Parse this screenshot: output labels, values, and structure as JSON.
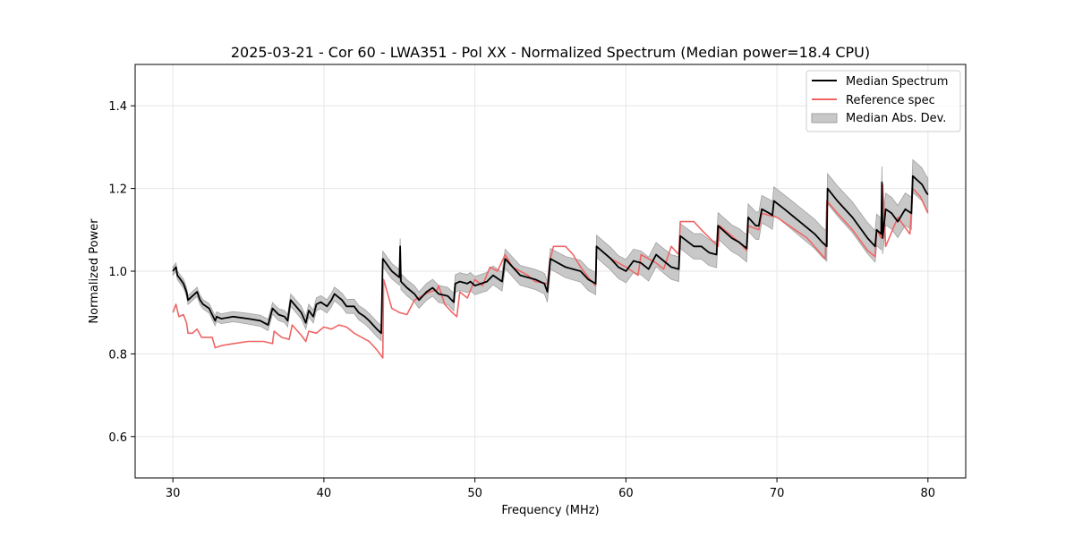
{
  "chart_data": {
    "type": "line",
    "title": "2025-03-21 - Cor 60 - LWA351 - Pol XX - Normalized Spectrum (Median power=18.4 CPU)",
    "xlabel": "Frequency (MHz)",
    "ylabel": "Normalized Power",
    "xlim": [
      27.5,
      82.5
    ],
    "ylim": [
      0.5,
      1.5
    ],
    "xticks": [
      30,
      40,
      50,
      60,
      70,
      80
    ],
    "yticks": [
      0.6,
      0.8,
      1.0,
      1.2,
      1.4
    ],
    "xtick_labels": [
      "30",
      "40",
      "50",
      "60",
      "70",
      "80"
    ],
    "ytick_labels": [
      "0.6",
      "0.8",
      "1.0",
      "1.2",
      "1.4"
    ],
    "grid": true,
    "legend_position": "top-right",
    "legend": [
      "Median Spectrum",
      "Reference spec",
      "Median Abs. Dev."
    ],
    "colors": {
      "median": "#000000",
      "reference": "#ee6666",
      "mad_fill": "#c8c8c8",
      "mad_edge": "#a0a0a0",
      "grid": "#e6e6e6"
    },
    "series": [
      {
        "name": "Median Spectrum",
        "x": [
          30.0,
          30.2,
          30.3,
          30.5,
          30.7,
          30.9,
          31.0,
          31.3,
          31.6,
          31.8,
          32.0,
          32.4,
          32.8,
          32.9,
          33.2,
          34.0,
          35.0,
          35.8,
          36.3,
          36.6,
          37.0,
          37.4,
          37.6,
          37.8,
          38.5,
          38.8,
          39.0,
          39.3,
          39.5,
          39.8,
          40.2,
          40.5,
          40.7,
          41.2,
          41.5,
          42.0,
          42.3,
          42.7,
          43.0,
          43.5,
          43.8,
          43.9,
          44.5,
          45.0,
          45.05,
          45.1,
          45.5,
          46.0,
          46.3,
          46.8,
          47.2,
          47.6,
          48.2,
          48.6,
          48.7,
          49.0,
          49.5,
          49.7,
          50.0,
          50.8,
          51.2,
          51.6,
          51.8,
          52.0,
          52.5,
          53.0,
          54.0,
          54.6,
          54.8,
          55.0,
          55.5,
          56.0,
          56.5,
          57.0,
          57.5,
          58.0,
          58.05,
          59.0,
          59.5,
          60.0,
          60.5,
          61.0,
          61.5,
          62.0,
          62.5,
          63.0,
          63.5,
          63.6,
          64.5,
          65.0,
          65.5,
          66.0,
          66.1,
          67.0,
          67.5,
          68.0,
          68.1,
          68.6,
          68.8,
          69.0,
          69.5,
          69.7,
          69.8,
          70.5,
          71.5,
          72.5,
          73.0,
          73.3,
          73.35,
          74.0,
          75.0,
          76.0,
          76.5,
          76.6,
          76.9,
          76.95,
          77.0,
          77.2,
          77.6,
          78.0,
          78.5,
          78.9,
          79.0,
          79.3,
          79.6,
          79.9,
          80.0
        ],
        "y": [
          1.0,
          1.01,
          0.99,
          0.98,
          0.97,
          0.95,
          0.93,
          0.94,
          0.95,
          0.93,
          0.92,
          0.91,
          0.88,
          0.89,
          0.885,
          0.89,
          0.885,
          0.88,
          0.87,
          0.91,
          0.895,
          0.89,
          0.88,
          0.93,
          0.9,
          0.875,
          0.905,
          0.89,
          0.92,
          0.925,
          0.915,
          0.93,
          0.945,
          0.93,
          0.915,
          0.915,
          0.9,
          0.89,
          0.88,
          0.86,
          0.85,
          1.03,
          1.0,
          0.985,
          1.06,
          0.975,
          0.96,
          0.945,
          0.93,
          0.95,
          0.96,
          0.945,
          0.94,
          0.925,
          0.97,
          0.975,
          0.97,
          0.975,
          0.965,
          0.975,
          0.99,
          0.98,
          0.975,
          1.03,
          1.01,
          0.99,
          0.98,
          0.97,
          0.95,
          1.03,
          1.02,
          1.01,
          1.005,
          1.0,
          0.98,
          0.97,
          1.06,
          1.03,
          1.01,
          1.0,
          1.025,
          1.02,
          1.005,
          1.04,
          1.025,
          1.01,
          1.005,
          1.085,
          1.06,
          1.06,
          1.045,
          1.04,
          1.11,
          1.08,
          1.07,
          1.055,
          1.13,
          1.11,
          1.11,
          1.15,
          1.14,
          1.135,
          1.17,
          1.15,
          1.12,
          1.09,
          1.07,
          1.06,
          1.2,
          1.17,
          1.13,
          1.08,
          1.06,
          1.1,
          1.09,
          1.215,
          1.08,
          1.15,
          1.14,
          1.12,
          1.15,
          1.14,
          1.23,
          1.22,
          1.21,
          1.19,
          1.185
        ]
      },
      {
        "name": "Reference spec",
        "x": [
          30.0,
          30.2,
          30.4,
          30.7,
          30.9,
          31.0,
          31.3,
          31.6,
          31.9,
          32.2,
          32.6,
          32.8,
          33.2,
          34.0,
          35.0,
          36.0,
          36.6,
          36.7,
          37.2,
          37.7,
          37.9,
          38.5,
          38.8,
          39.0,
          39.5,
          40.0,
          40.5,
          41.0,
          41.5,
          42.0,
          42.5,
          43.0,
          43.5,
          43.9,
          43.95,
          44.5,
          45.0,
          45.5,
          46.0,
          46.5,
          47.0,
          47.5,
          47.6,
          48.0,
          48.5,
          48.8,
          49.0,
          49.5,
          50.0,
          50.5,
          51.0,
          51.5,
          52.0,
          52.5,
          53.5,
          54.0,
          54.8,
          55.0,
          55.2,
          55.6,
          56.0,
          56.5,
          57.0,
          57.5,
          58.0,
          58.05,
          59.0,
          60.0,
          60.8,
          61.0,
          62.0,
          62.5,
          63.0,
          63.5,
          63.6,
          64.5,
          65.0,
          66.1,
          66.2,
          67.5,
          68.0,
          68.1,
          68.8,
          69.0,
          70.0,
          72.0,
          73.2,
          73.3,
          74.0,
          75.0,
          76.0,
          76.5,
          76.6,
          76.9,
          77.0,
          77.2,
          78.0,
          78.8,
          79.0,
          79.5,
          80.0
        ],
        "y": [
          0.9,
          0.92,
          0.89,
          0.895,
          0.875,
          0.85,
          0.85,
          0.86,
          0.84,
          0.84,
          0.84,
          0.815,
          0.82,
          0.825,
          0.83,
          0.83,
          0.825,
          0.855,
          0.84,
          0.835,
          0.87,
          0.845,
          0.83,
          0.855,
          0.85,
          0.865,
          0.86,
          0.87,
          0.865,
          0.85,
          0.84,
          0.83,
          0.81,
          0.79,
          0.98,
          0.91,
          0.9,
          0.895,
          0.93,
          0.94,
          0.95,
          0.955,
          0.965,
          0.92,
          0.9,
          0.89,
          0.95,
          0.935,
          0.98,
          0.965,
          1.01,
          1.0,
          1.04,
          1.01,
          0.99,
          0.975,
          0.97,
          1.03,
          1.06,
          1.06,
          1.06,
          1.04,
          1.01,
          0.985,
          0.965,
          1.06,
          1.03,
          1.01,
          0.99,
          1.04,
          1.02,
          1.005,
          1.06,
          1.04,
          1.12,
          1.12,
          1.1,
          1.06,
          1.11,
          1.07,
          1.05,
          1.11,
          1.1,
          1.14,
          1.13,
          1.08,
          1.03,
          1.17,
          1.14,
          1.1,
          1.05,
          1.035,
          1.1,
          1.08,
          1.21,
          1.06,
          1.13,
          1.09,
          1.2,
          1.18,
          1.14
        ]
      }
    ],
    "mad_band": {
      "name": "Median Abs. Dev.",
      "half_width_start": 0.01,
      "half_width_end": 0.04
    }
  }
}
